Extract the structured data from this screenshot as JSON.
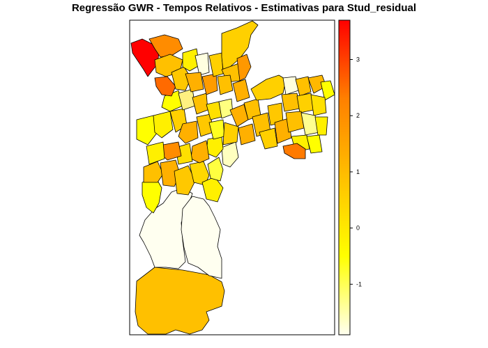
{
  "title": "Regressão GWR - Tempos Relativos - Estimativas para Stud_residual",
  "legend": {
    "ticks": [
      {
        "label": "3",
        "value": 3
      },
      {
        "label": "2",
        "value": 2
      },
      {
        "label": "1",
        "value": 1
      },
      {
        "label": "0",
        "value": 0
      },
      {
        "label": "-1",
        "value": -1
      }
    ],
    "range": [
      -1.9,
      3.7
    ],
    "colors": [
      "#FFFFF0",
      "#FFFF00",
      "#FFC000",
      "#FF8000",
      "#FF0000"
    ]
  }
}
